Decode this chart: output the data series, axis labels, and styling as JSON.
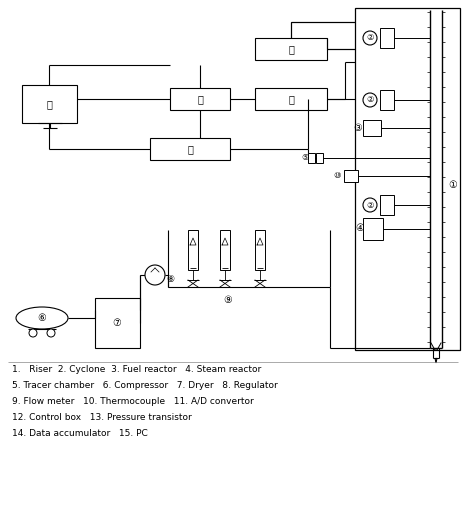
{
  "bg_color": "#ffffff",
  "line_color": "#000000",
  "legend_lines": [
    "1.   Riser  2. Cyclone  3. Fuel reactor   4. Steam reactor",
    "5. Tracer chamber   6. Compressor   7. Dryer   8. Regulator",
    "9. Flow meter   10. Thermocouple   11. A/D convertor",
    "12. Control box   13. Pressure transistor",
    "14. Data accumulator   15. PC"
  ],
  "figsize": [
    4.66,
    5.12
  ],
  "dpi": 100
}
